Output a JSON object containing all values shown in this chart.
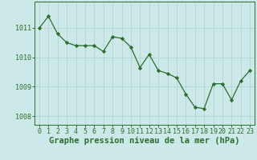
{
  "x": [
    0,
    1,
    2,
    3,
    4,
    5,
    6,
    7,
    8,
    9,
    10,
    11,
    12,
    13,
    14,
    15,
    16,
    17,
    18,
    19,
    20,
    21,
    22,
    23
  ],
  "y": [
    1011.0,
    1011.4,
    1010.8,
    1010.5,
    1010.4,
    1010.4,
    1010.4,
    1010.2,
    1010.7,
    1010.65,
    1010.35,
    1009.65,
    1010.1,
    1009.55,
    1009.45,
    1009.3,
    1008.75,
    1008.3,
    1008.25,
    1009.1,
    1009.1,
    1008.55,
    1009.2,
    1009.55
  ],
  "line_color": "#2d6e2d",
  "marker_color": "#2d6e2d",
  "bg_color": "#cce8e8",
  "grid_color": "#b0d4d4",
  "xlabel": "Graphe pression niveau de la mer (hPa)",
  "xlabel_color": "#2d6e2d",
  "tick_color": "#2d6e2d",
  "ylim": [
    1007.7,
    1011.9
  ],
  "xlim": [
    -0.5,
    23.5
  ],
  "yticks": [
    1008,
    1009,
    1010,
    1011
  ],
  "xticks": [
    0,
    1,
    2,
    3,
    4,
    5,
    6,
    7,
    8,
    9,
    10,
    11,
    12,
    13,
    14,
    15,
    16,
    17,
    18,
    19,
    20,
    21,
    22,
    23
  ],
  "xtick_labels": [
    "0",
    "1",
    "2",
    "3",
    "4",
    "5",
    "6",
    "7",
    "8",
    "9",
    "10",
    "11",
    "12",
    "13",
    "14",
    "15",
    "16",
    "17",
    "18",
    "19",
    "20",
    "21",
    "22",
    "23"
  ],
  "title_fontsize": 7.5,
  "tick_fontsize": 6.0
}
